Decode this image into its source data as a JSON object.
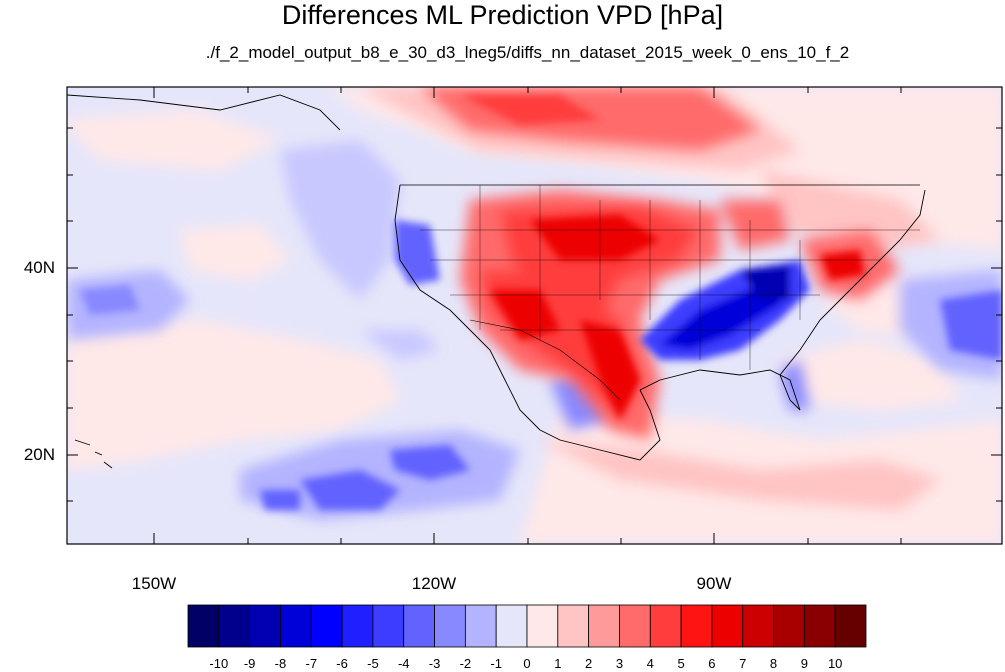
{
  "title": "Differences ML Prediction VPD [hPa]",
  "subtitle": "./f_2_model_output_b8_e_30_d3_lneg5/diffs_nn_dataset_2015_week_0_ens_10_f_2",
  "lat_labels": [
    "40N",
    "20N"
  ],
  "lon_labels": [
    "150W",
    "120W",
    "90W"
  ],
  "colorbar": {
    "labels": [
      "-10",
      "-9",
      "-8",
      "-7",
      "-6",
      "-5",
      "-4",
      "-3",
      "-2",
      "-1",
      "0",
      "1",
      "2",
      "3",
      "4",
      "5",
      "6",
      "7",
      "8",
      "9",
      "10"
    ],
    "colors": [
      "#000066",
      "#00008c",
      "#0000b3",
      "#0000d9",
      "#0000ff",
      "#1f1fff",
      "#3d3dff",
      "#6262ff",
      "#8888ff",
      "#b3b3ff",
      "#e6e6fa",
      "#ffe8e8",
      "#ffc4c4",
      "#ff9a9a",
      "#ff6a6a",
      "#ff3d3d",
      "#ff1414",
      "#ed0000",
      "#cc0000",
      "#a80000",
      "#8a0000",
      "#660000"
    ]
  },
  "map_extent": {
    "lon_min": -160,
    "lon_max": -62,
    "lat_min": 10,
    "lat_max": 59
  }
}
